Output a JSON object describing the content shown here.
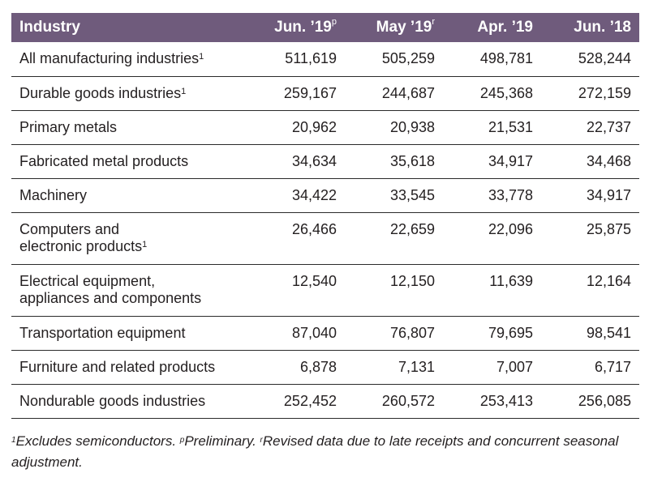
{
  "chart_data": {
    "type": "table",
    "columns": [
      "Industry",
      "Jun. ’19",
      "May ’19",
      "Apr. ’19",
      "Jun. ’18"
    ],
    "column_marks": [
      "",
      "p",
      "r",
      "",
      ""
    ],
    "rows": [
      {
        "industry": "All manufacturing industries",
        "mark": "1",
        "values": [
          "511,619",
          "505,259",
          "498,781",
          "528,244"
        ]
      },
      {
        "industry": "Durable goods industries",
        "mark": "1",
        "values": [
          "259,167",
          "244,687",
          "245,368",
          "272,159"
        ]
      },
      {
        "industry": "Primary metals",
        "mark": "",
        "values": [
          "20,962",
          "20,938",
          "21,531",
          "22,737"
        ]
      },
      {
        "industry": "Fabricated metal products",
        "mark": "",
        "values": [
          "34,634",
          "35,618",
          "34,917",
          "34,468"
        ]
      },
      {
        "industry": "Machinery",
        "mark": "",
        "values": [
          "34,422",
          "33,545",
          "33,778",
          "34,917"
        ]
      },
      {
        "industry": "Computers and electronic products",
        "lines": [
          "Computers and",
          "electronic products"
        ],
        "mark": "1",
        "values": [
          "26,466",
          "22,659",
          "22,096",
          "25,875"
        ]
      },
      {
        "industry": "Electrical equipment, appliances and components",
        "lines": [
          "Electrical equipment,",
          "appliances and components"
        ],
        "mark": "",
        "values": [
          "12,540",
          "12,150",
          "11,639",
          "12,164"
        ]
      },
      {
        "industry": "Transportation equipment",
        "mark": "",
        "values": [
          "87,040",
          "76,807",
          "79,695",
          "98,541"
        ]
      },
      {
        "industry": "Furniture and related products",
        "mark": "",
        "values": [
          "6,878",
          "7,131",
          "7,007",
          "6,717"
        ]
      },
      {
        "industry": "Nondurable goods industries",
        "mark": "",
        "values": [
          "252,452",
          "260,572",
          "253,413",
          "256,085"
        ]
      }
    ],
    "header_color": "#6f5b7c"
  },
  "footnote": {
    "m1": "1",
    "t1": "Excludes semiconductors. ",
    "m2": "p",
    "t2": "Preliminary. ",
    "m3": "r",
    "t3": "Revised data due to late receipts and concurrent seasonal adjustment."
  }
}
